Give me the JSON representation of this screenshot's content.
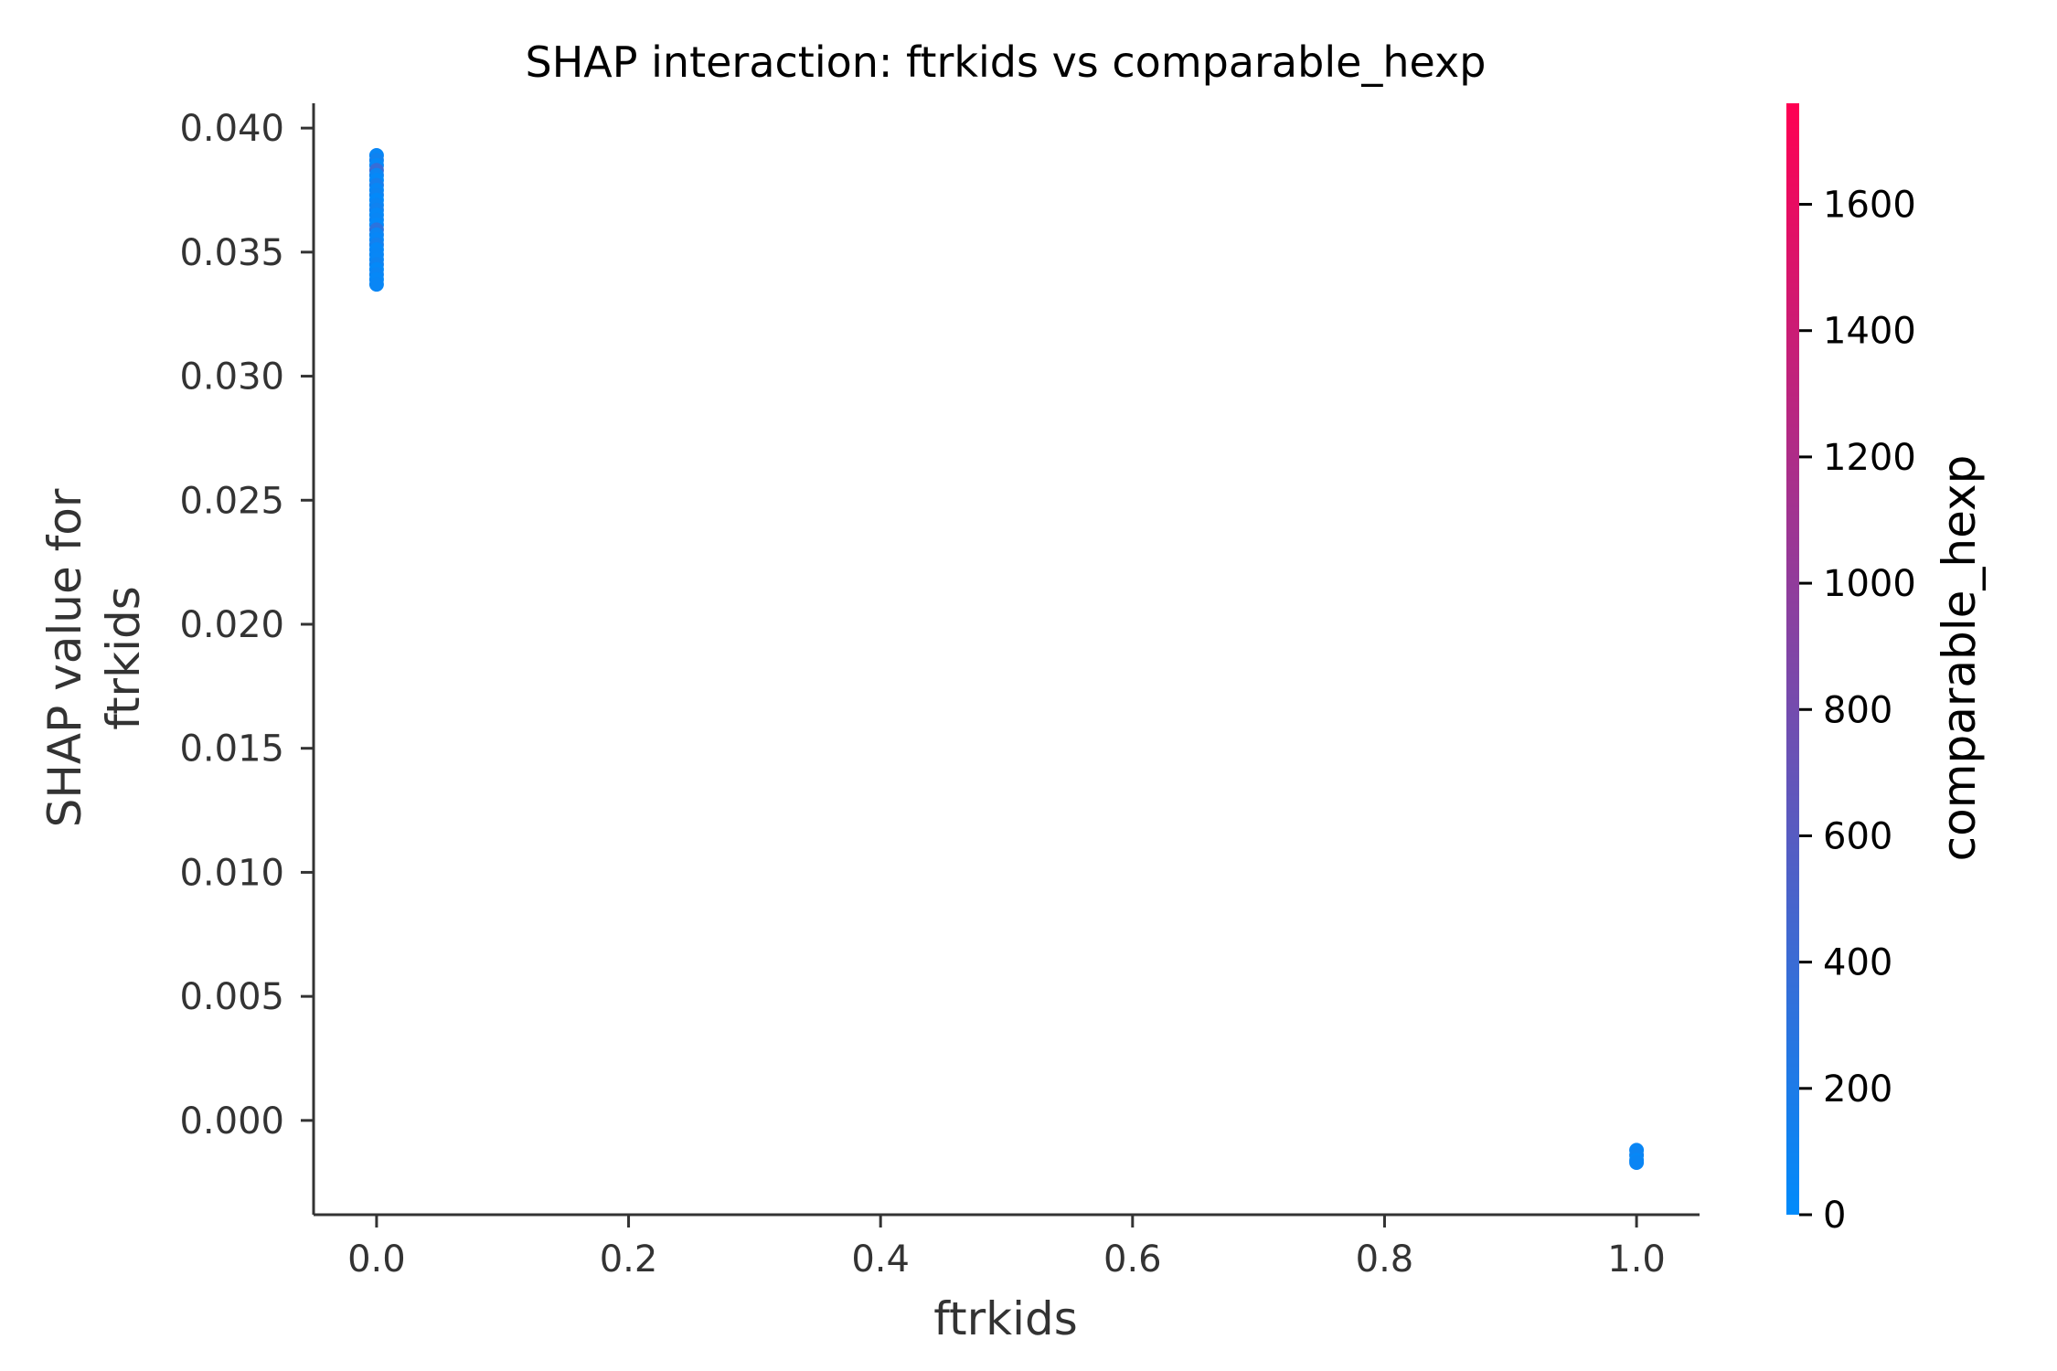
{
  "chart_data": {
    "type": "scatter",
    "title": "SHAP interaction: ftrkids vs comparable_hexp",
    "xlabel": "ftrkids",
    "ylabel_lines": [
      "SHAP value for",
      "ftrkids"
    ],
    "xlim": [
      -0.05,
      1.05
    ],
    "ylim": [
      -0.0038,
      0.041
    ],
    "xticks": [
      0.0,
      0.2,
      0.4,
      0.6,
      0.8,
      1.0
    ],
    "xtick_labels": [
      "0.0",
      "0.2",
      "0.4",
      "0.6",
      "0.8",
      "1.0"
    ],
    "yticks": [
      0.0,
      0.005,
      0.01,
      0.015,
      0.02,
      0.025,
      0.03,
      0.035,
      0.04
    ],
    "ytick_labels": [
      "0.000",
      "0.005",
      "0.010",
      "0.015",
      "0.020",
      "0.025",
      "0.030",
      "0.035",
      "0.040"
    ],
    "grid": false,
    "colorbar": {
      "label": "comparable_hexp",
      "range": [
        0,
        1760
      ],
      "ticks": [
        0,
        200,
        400,
        600,
        800,
        1000,
        1200,
        1400,
        1600
      ],
      "tick_labels": [
        "0",
        "200",
        "400",
        "600",
        "800",
        "1000",
        "1200",
        "1400",
        "1600"
      ],
      "colors": [
        "#008bfb",
        "#ff0052"
      ]
    },
    "points": [
      {
        "x": 0.0,
        "y": 0.0389,
        "c": 60
      },
      {
        "x": 0.0,
        "y": 0.0387,
        "c": 120
      },
      {
        "x": 0.0,
        "y": 0.0385,
        "c": 40
      },
      {
        "x": 0.0,
        "y": 0.0383,
        "c": 380
      },
      {
        "x": 0.0,
        "y": 0.0381,
        "c": 80
      },
      {
        "x": 0.0,
        "y": 0.0379,
        "c": 30
      },
      {
        "x": 0.0,
        "y": 0.0377,
        "c": 150
      },
      {
        "x": 0.0,
        "y": 0.0375,
        "c": 50
      },
      {
        "x": 0.0,
        "y": 0.0373,
        "c": 90
      },
      {
        "x": 0.0,
        "y": 0.0371,
        "c": 20
      },
      {
        "x": 0.0,
        "y": 0.0369,
        "c": 70
      },
      {
        "x": 0.0,
        "y": 0.0367,
        "c": 110
      },
      {
        "x": 0.0,
        "y": 0.0365,
        "c": 40
      },
      {
        "x": 0.0,
        "y": 0.0363,
        "c": 60
      },
      {
        "x": 0.0,
        "y": 0.0361,
        "c": 25
      },
      {
        "x": 0.0,
        "y": 0.0359,
        "c": 300
      },
      {
        "x": 0.0,
        "y": 0.0357,
        "c": 80
      },
      {
        "x": 0.0,
        "y": 0.0355,
        "c": 45
      },
      {
        "x": 0.0,
        "y": 0.0353,
        "c": 130
      },
      {
        "x": 0.0,
        "y": 0.0351,
        "c": 35
      },
      {
        "x": 0.0,
        "y": 0.0349,
        "c": 65
      },
      {
        "x": 0.0,
        "y": 0.0347,
        "c": 55
      },
      {
        "x": 0.0,
        "y": 0.0345,
        "c": 100
      },
      {
        "x": 0.0,
        "y": 0.0343,
        "c": 30
      },
      {
        "x": 0.0,
        "y": 0.0341,
        "c": 75
      },
      {
        "x": 0.0,
        "y": 0.0339,
        "c": 40
      },
      {
        "x": 0.0,
        "y": 0.0337,
        "c": 60
      },
      {
        "x": 1.0,
        "y": -0.0012,
        "c": 60
      },
      {
        "x": 1.0,
        "y": -0.0014,
        "c": 90
      },
      {
        "x": 1.0,
        "y": -0.0016,
        "c": 40
      },
      {
        "x": 1.0,
        "y": -0.0017,
        "c": 70
      }
    ]
  }
}
